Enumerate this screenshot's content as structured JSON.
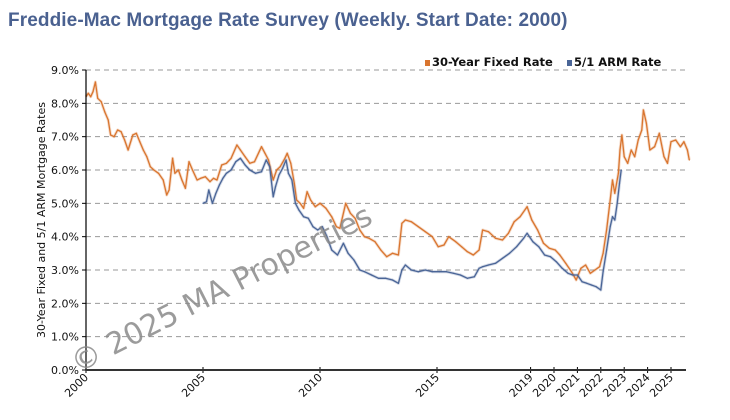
{
  "chart_data": {
    "type": "line",
    "title": "Freddie-Mac Mortgage Rate Survey (Weekly. Start Date: 2000)",
    "xlabel": "",
    "ylabel": "30-Year Fixed and 5/1 ARM Mortgage Rates",
    "xlim": [
      2000,
      2025.8
    ],
    "ylim": [
      0,
      9
    ],
    "grid": true,
    "legend_position": "top-right",
    "x_ticks": [
      "2000",
      "2005",
      "2010",
      "2015",
      "2019",
      "2020",
      "2021",
      "2022",
      "2023",
      "2024",
      "2025"
    ],
    "x_tick_values": [
      2000,
      2005,
      2010,
      2015,
      2019,
      2020,
      2021,
      2022,
      2023,
      2024,
      2025
    ],
    "y_ticks": [
      "0.0%",
      "1.0%",
      "2.0%",
      "3.0%",
      "4.0%",
      "5.0%",
      "6.0%",
      "7.0%",
      "8.0%",
      "9.0%"
    ],
    "y_tick_values": [
      0,
      1,
      2,
      3,
      4,
      5,
      6,
      7,
      8,
      9
    ],
    "watermark": "© 2025 MA Properties",
    "series": [
      {
        "name": "30-Year Fixed Rate",
        "color": "#d9752f",
        "x": [
          2000.0,
          2000.1,
          2000.2,
          2000.3,
          2000.4,
          2000.5,
          2000.65,
          2000.8,
          2000.95,
          2001.05,
          2001.2,
          2001.35,
          2001.5,
          2001.65,
          2001.8,
          2002.0,
          2002.15,
          2002.3,
          2002.45,
          2002.6,
          2002.75,
          2002.9,
          2003.1,
          2003.3,
          2003.45,
          2003.55,
          2003.7,
          2003.8,
          2003.95,
          2004.1,
          2004.25,
          2004.4,
          2004.55,
          2004.75,
          2004.9,
          2005.1,
          2005.3,
          2005.45,
          2005.6,
          2005.8,
          2006.0,
          2006.2,
          2006.45,
          2006.6,
          2006.8,
          2007.0,
          2007.2,
          2007.5,
          2007.65,
          2007.8,
          2008.0,
          2008.15,
          2008.3,
          2008.5,
          2008.6,
          2008.75,
          2008.9,
          2009.0,
          2009.15,
          2009.3,
          2009.45,
          2009.6,
          2009.8,
          2010.0,
          2010.25,
          2010.5,
          2010.7,
          2010.85,
          2011.1,
          2011.3,
          2011.5,
          2011.7,
          2011.9,
          2012.1,
          2012.35,
          2012.6,
          2012.85,
          2013.1,
          2013.35,
          2013.5,
          2013.65,
          2013.9,
          2014.2,
          2014.5,
          2014.8,
          2015.05,
          2015.3,
          2015.5,
          2015.8,
          2016.05,
          2016.3,
          2016.55,
          2016.8,
          2016.95,
          2017.2,
          2017.5,
          2017.8,
          2018.05,
          2018.3,
          2018.55,
          2018.85,
          2019.05,
          2019.3,
          2019.55,
          2019.8,
          2020.05,
          2020.25,
          2020.5,
          2020.75,
          2020.95,
          2021.15,
          2021.35,
          2021.55,
          2021.75,
          2021.95,
          2022.1,
          2022.25,
          2022.4,
          2022.5,
          2022.6,
          2022.75,
          2022.82,
          2022.9,
          2023.0,
          2023.15,
          2023.3,
          2023.45,
          2023.6,
          2023.75,
          2023.82,
          2023.95,
          2024.1,
          2024.3,
          2024.5,
          2024.7,
          2024.85,
          2025.0,
          2025.2,
          2025.4,
          2025.55,
          2025.7,
          2025.78
        ],
        "values": [
          8.2,
          8.3,
          8.2,
          8.35,
          8.64,
          8.15,
          8.05,
          7.75,
          7.5,
          7.05,
          7.0,
          7.2,
          7.15,
          6.9,
          6.6,
          7.05,
          7.1,
          6.85,
          6.6,
          6.4,
          6.1,
          6.0,
          5.9,
          5.7,
          5.25,
          5.4,
          6.35,
          5.9,
          6.0,
          5.7,
          5.45,
          6.25,
          6.0,
          5.7,
          5.75,
          5.8,
          5.65,
          5.75,
          5.7,
          6.15,
          6.2,
          6.35,
          6.75,
          6.6,
          6.4,
          6.2,
          6.25,
          6.7,
          6.5,
          6.3,
          5.7,
          6.0,
          6.1,
          6.35,
          6.5,
          6.2,
          5.6,
          5.1,
          5.0,
          4.85,
          5.35,
          5.1,
          4.9,
          5.0,
          4.85,
          4.6,
          4.3,
          4.25,
          5.0,
          4.7,
          4.55,
          4.2,
          4.0,
          3.95,
          3.85,
          3.6,
          3.4,
          3.5,
          3.45,
          4.4,
          4.5,
          4.45,
          4.3,
          4.15,
          4.0,
          3.7,
          3.75,
          4.0,
          3.85,
          3.7,
          3.55,
          3.45,
          3.6,
          4.2,
          4.15,
          3.95,
          3.9,
          4.1,
          4.45,
          4.6,
          4.9,
          4.5,
          4.2,
          3.8,
          3.65,
          3.6,
          3.45,
          3.2,
          2.95,
          2.7,
          3.05,
          3.15,
          2.9,
          3.0,
          3.1,
          3.5,
          4.2,
          5.1,
          5.7,
          5.3,
          5.9,
          6.6,
          7.05,
          6.4,
          6.2,
          6.6,
          6.4,
          6.9,
          7.2,
          7.8,
          7.4,
          6.6,
          6.7,
          7.1,
          6.4,
          6.2,
          6.85,
          6.9,
          6.7,
          6.85,
          6.6,
          6.3
        ]
      },
      {
        "name": "5/1 ARM Rate",
        "color": "#4a6597",
        "x": [
          2005.0,
          2005.15,
          2005.25,
          2005.4,
          2005.55,
          2005.7,
          2005.85,
          2006.0,
          2006.2,
          2006.4,
          2006.6,
          2006.8,
          2007.0,
          2007.25,
          2007.5,
          2007.7,
          2007.85,
          2008.0,
          2008.1,
          2008.25,
          2008.4,
          2008.55,
          2008.65,
          2008.8,
          2008.95,
          2009.1,
          2009.3,
          2009.5,
          2009.7,
          2009.9,
          2010.1,
          2010.3,
          2010.5,
          2010.75,
          2011.0,
          2011.2,
          2011.45,
          2011.7,
          2011.9,
          2012.2,
          2012.5,
          2012.8,
          2013.1,
          2013.35,
          2013.5,
          2013.65,
          2013.9,
          2014.2,
          2014.5,
          2014.8,
          2015.1,
          2015.4,
          2015.7,
          2016.0,
          2016.3,
          2016.6,
          2016.8,
          2016.95,
          2017.2,
          2017.5,
          2017.8,
          2018.1,
          2018.4,
          2018.7,
          2018.85,
          2019.1,
          2019.35,
          2019.6,
          2019.85,
          2020.1,
          2020.35,
          2020.6,
          2020.8,
          2021.0,
          2021.2,
          2021.4,
          2021.6,
          2021.8,
          2022.0,
          2022.1,
          2022.25,
          2022.4,
          2022.5,
          2022.6,
          2022.7,
          2022.8,
          2022.87
        ],
        "values": [
          5.0,
          5.05,
          5.4,
          5.0,
          5.3,
          5.55,
          5.75,
          5.9,
          6.0,
          6.25,
          6.35,
          6.15,
          6.0,
          5.9,
          5.95,
          6.3,
          6.1,
          5.2,
          5.5,
          5.85,
          6.05,
          6.3,
          5.9,
          5.7,
          5.0,
          4.8,
          4.6,
          4.55,
          4.3,
          4.2,
          4.3,
          4.0,
          3.6,
          3.45,
          3.8,
          3.5,
          3.3,
          3.0,
          2.95,
          2.85,
          2.75,
          2.75,
          2.7,
          2.6,
          3.0,
          3.15,
          3.0,
          2.95,
          3.0,
          2.95,
          2.95,
          2.95,
          2.9,
          2.85,
          2.75,
          2.8,
          3.05,
          3.1,
          3.15,
          3.2,
          3.35,
          3.5,
          3.7,
          3.95,
          4.1,
          3.85,
          3.7,
          3.45,
          3.4,
          3.25,
          3.05,
          2.9,
          2.85,
          2.85,
          2.65,
          2.6,
          2.55,
          2.5,
          2.4,
          2.95,
          3.6,
          4.3,
          4.6,
          4.5,
          5.0,
          5.6,
          6.0
        ]
      }
    ]
  }
}
